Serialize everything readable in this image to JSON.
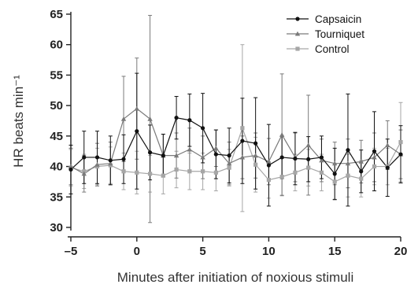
{
  "chart_data": {
    "type": "line",
    "xlabel": "Minutes after initiation of noxious stimuli",
    "ylabel": "HR beats min⁻¹",
    "xlim": [
      -5,
      20
    ],
    "ylim": [
      30,
      65
    ],
    "x_ticks": [
      -5,
      0,
      5,
      10,
      15,
      20
    ],
    "x_tick_labels": [
      "–5",
      "0",
      "5",
      "10",
      "15",
      "20"
    ],
    "y_ticks": [
      30,
      35,
      40,
      45,
      50,
      55,
      60,
      65
    ],
    "y_tick_labels": [
      "30",
      "35",
      "40",
      "45",
      "50",
      "55",
      "60",
      "65"
    ],
    "grid": false,
    "legend_position": "top-right",
    "x": [
      -5,
      -4,
      -3,
      -2,
      -1,
      0,
      1,
      2,
      3,
      4,
      5,
      6,
      7,
      8,
      9,
      10,
      11,
      12,
      13,
      14,
      15,
      16,
      17,
      18,
      19,
      20
    ],
    "series": [
      {
        "name": "Capsaicin",
        "color": "#111111",
        "marker": "circle",
        "values": [
          39.5,
          41.5,
          41.5,
          41.0,
          41.2,
          45.8,
          42.3,
          41.8,
          48.0,
          47.6,
          46.3,
          42.0,
          41.8,
          44.2,
          43.8,
          40.2,
          41.5,
          41.3,
          41.2,
          41.5,
          38.8,
          42.7,
          39.2,
          42.5,
          39.8,
          42.0
        ],
        "err": [
          4.0,
          4.3,
          4.3,
          4.0,
          4.0,
          9.5,
          4.5,
          3.5,
          3.5,
          4.3,
          5.7,
          4.0,
          4.5,
          7.0,
          7.5,
          6.7,
          3.5,
          4.3,
          3.7,
          3.5,
          4.2,
          9.2,
          3.5,
          6.5,
          4.7,
          4.7
        ]
      },
      {
        "name": "Tourniquet",
        "color": "#7a7a7a",
        "marker": "triangle",
        "values": [
          40.0,
          38.8,
          40.3,
          40.5,
          47.8,
          49.5,
          47.8,
          41.8,
          41.8,
          42.8,
          41.5,
          43.0,
          40.5,
          41.5,
          41.8,
          40.8,
          45.2,
          41.5,
          43.5,
          41.0,
          40.5,
          40.5,
          40.8,
          41.5,
          43.5,
          42.0
        ],
        "err": [
          3.0,
          3.0,
          3.5,
          3.5,
          7.0,
          8.3,
          17.0,
          3.5,
          3.7,
          3.5,
          3.5,
          3.0,
          3.5,
          3.5,
          3.7,
          3.8,
          10.0,
          4.0,
          8.2,
          3.5,
          3.5,
          4.0,
          3.5,
          4.0,
          4.0,
          4.0
        ]
      },
      {
        "name": "Control",
        "color": "#a6a6a6",
        "marker": "square",
        "values": [
          39.8,
          39.2,
          40.0,
          40.2,
          39.2,
          39.0,
          38.8,
          38.5,
          39.5,
          39.2,
          39.2,
          39.0,
          39.8,
          46.3,
          40.3,
          37.8,
          38.3,
          39.0,
          39.8,
          39.0,
          37.5,
          38.5,
          38.0,
          40.0,
          40.0,
          44.0
        ],
        "err": [
          3.0,
          2.8,
          3.0,
          3.0,
          3.0,
          3.5,
          3.0,
          3.0,
          3.0,
          3.0,
          3.0,
          3.0,
          3.0,
          13.7,
          4.5,
          3.0,
          3.0,
          3.0,
          3.0,
          3.0,
          3.0,
          3.5,
          3.0,
          3.0,
          3.0,
          6.5
        ]
      }
    ]
  }
}
